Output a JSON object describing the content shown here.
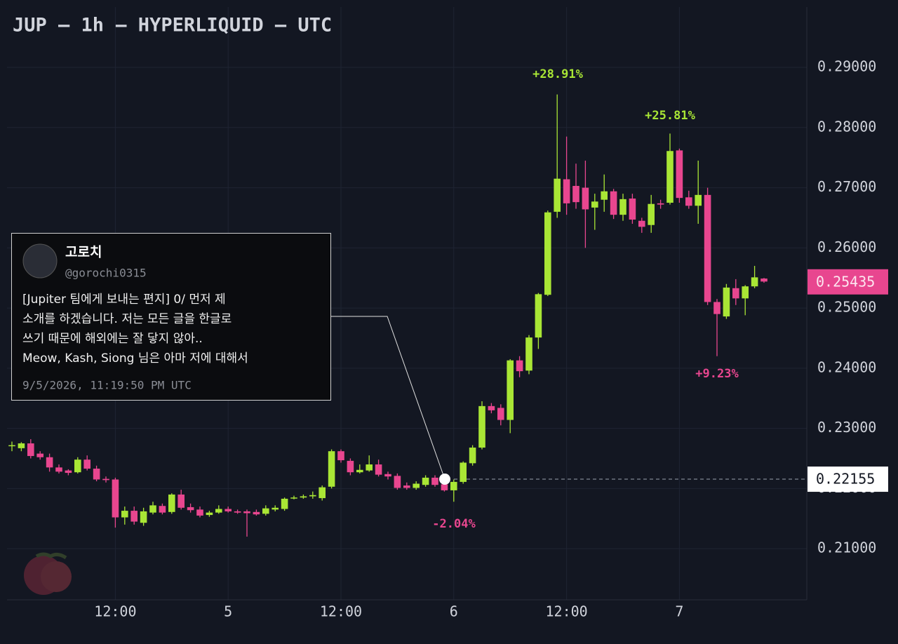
{
  "chart_data": {
    "type": "candlestick",
    "title": "JUP — 1h — HYPERLIQUID — UTC",
    "categories": [
      null,
      null,
      null,
      null,
      null,
      null,
      null,
      null,
      null,
      null,
      null,
      "12:00",
      null,
      null,
      null,
      null,
      null,
      null,
      null,
      null,
      null,
      null,
      null,
      "5",
      null,
      null,
      null,
      null,
      null,
      null,
      null,
      null,
      null,
      null,
      null,
      "12:00",
      null,
      null,
      null,
      null,
      null,
      null,
      null,
      null,
      null,
      null,
      null,
      "6",
      null,
      null,
      null,
      null,
      null,
      null,
      null,
      null,
      null,
      null,
      null,
      "12:00",
      null,
      null,
      null,
      null,
      null,
      null,
      null,
      null,
      null,
      null,
      null,
      "7",
      null,
      null,
      null,
      null,
      null,
      null,
      null,
      null,
      null
    ],
    "open": [
      0.2272,
      0.2267,
      0.2275,
      0.2258,
      0.2252,
      0.2235,
      0.223,
      0.2227,
      0.2248,
      0.2233,
      0.2216,
      0.2215,
      0.2152,
      0.2163,
      0.2143,
      0.216,
      0.2171,
      0.2161,
      0.219,
      0.2169,
      0.2165,
      0.2156,
      0.216,
      0.2166,
      0.2162,
      0.2162,
      0.2161,
      0.2158,
      0.2165,
      0.2166,
      0.2184,
      0.2185,
      0.2187,
      0.2184,
      0.2203,
      0.2262,
      0.2246,
      0.2227,
      0.223,
      0.224,
      0.2224,
      0.2221,
      0.2205,
      0.2201,
      0.2206,
      0.2218,
      0.2207,
      0.2197,
      0.2211,
      0.2242,
      0.2268,
      0.2337,
      0.2334,
      0.2314,
      0.2413,
      0.2396,
      0.2451,
      0.2522,
      0.266,
      0.2714,
      0.2703,
      0.27,
      0.2667,
      0.268,
      0.2694,
      0.2655,
      0.2682,
      0.2645,
      0.2638,
      0.2674,
      0.2675,
      0.2762,
      0.2684,
      0.267,
      0.2688,
      0.251,
      0.2486,
      0.2533,
      0.2516,
      0.2536,
      0.2549
    ],
    "high": [
      0.2278,
      0.2277,
      0.2282,
      0.2262,
      0.2258,
      0.224,
      0.2232,
      0.2252,
      0.2255,
      0.2238,
      0.222,
      0.2218,
      0.217,
      0.217,
      0.2168,
      0.2178,
      0.2175,
      0.2192,
      0.2198,
      0.2175,
      0.217,
      0.2163,
      0.2172,
      0.217,
      0.2165,
      0.2165,
      0.2165,
      0.2172,
      0.2172,
      0.2185,
      0.2188,
      0.219,
      0.2195,
      0.2205,
      0.2265,
      0.2265,
      0.225,
      0.224,
      0.2255,
      0.2248,
      0.2228,
      0.2225,
      0.221,
      0.2212,
      0.2222,
      0.2222,
      0.2215,
      0.2215,
      0.2245,
      0.2272,
      0.2345,
      0.2342,
      0.234,
      0.2415,
      0.242,
      0.2455,
      0.2525,
      0.2662,
      0.2855,
      0.2785,
      0.274,
      0.2745,
      0.269,
      0.2722,
      0.2698,
      0.269,
      0.269,
      0.265,
      0.2688,
      0.268,
      0.279,
      0.2765,
      0.2695,
      0.2745,
      0.27,
      0.2515,
      0.254,
      0.2548,
      0.2538,
      0.257,
      0.255
    ],
    "low": [
      0.2262,
      0.2262,
      0.225,
      0.2248,
      0.2228,
      0.2225,
      0.2222,
      0.2225,
      0.223,
      0.2212,
      0.221,
      0.2135,
      0.214,
      0.214,
      0.2138,
      0.2157,
      0.2157,
      0.2158,
      0.2165,
      0.216,
      0.2152,
      0.2153,
      0.2158,
      0.216,
      0.2158,
      0.212,
      0.2155,
      0.2155,
      0.2162,
      0.2163,
      0.2182,
      0.2183,
      0.2183,
      0.218,
      0.22,
      0.2243,
      0.2222,
      0.2225,
      0.2228,
      0.222,
      0.2215,
      0.2198,
      0.2198,
      0.2198,
      0.2203,
      0.2203,
      0.2195,
      0.2178,
      0.2208,
      0.2238,
      0.2265,
      0.2325,
      0.2305,
      0.2292,
      0.2385,
      0.239,
      0.2432,
      0.252,
      0.265,
      0.2655,
      0.2665,
      0.26,
      0.263,
      0.266,
      0.2648,
      0.2645,
      0.264,
      0.2625,
      0.2625,
      0.2665,
      0.2672,
      0.2675,
      0.2665,
      0.264,
      0.2505,
      0.242,
      0.2482,
      0.2505,
      0.2488,
      0.2533,
      0.2542
    ],
    "close": [
      0.2272,
      0.2275,
      0.2254,
      0.2252,
      0.2235,
      0.2228,
      0.2226,
      0.2248,
      0.2233,
      0.2215,
      0.2214,
      0.2152,
      0.2163,
      0.2145,
      0.2162,
      0.2172,
      0.216,
      0.219,
      0.2168,
      0.2164,
      0.2155,
      0.216,
      0.2166,
      0.2162,
      0.216,
      0.2159,
      0.2157,
      0.2167,
      0.2168,
      0.2183,
      0.2185,
      0.2187,
      0.2189,
      0.2202,
      0.2262,
      0.2247,
      0.2227,
      0.2231,
      0.224,
      0.2223,
      0.222,
      0.2201,
      0.2201,
      0.2208,
      0.2218,
      0.2206,
      0.2197,
      0.2211,
      0.2243,
      0.2268,
      0.2337,
      0.233,
      0.2314,
      0.2413,
      0.2395,
      0.2451,
      0.2523,
      0.2659,
      0.2715,
      0.2674,
      0.2676,
      0.2664,
      0.2677,
      0.2694,
      0.2655,
      0.2681,
      0.2647,
      0.2635,
      0.2673,
      0.2672,
      0.2761,
      0.2683,
      0.267,
      0.2688,
      0.251,
      0.249,
      0.2534,
      0.2516,
      0.2536,
      0.2551,
      0.2544
    ],
    "up_color": "#a9e635",
    "down_color": "#e8468f",
    "ylim": [
      0.2015,
      0.3012
    ],
    "yticks": [
      {
        "value": 0.21,
        "label": "0.21000"
      },
      {
        "value": 0.22,
        "label": "0.22000"
      },
      {
        "value": 0.23,
        "label": "0.23000"
      },
      {
        "value": 0.24,
        "label": "0.24000"
      },
      {
        "value": 0.25,
        "label": "0.25000"
      },
      {
        "value": 0.26,
        "label": "0.26000"
      },
      {
        "value": 0.27,
        "label": "0.27000"
      },
      {
        "value": 0.28,
        "label": "0.28000"
      },
      {
        "value": 0.29,
        "label": "0.29000"
      }
    ],
    "grid": true,
    "price_line": 0.22155,
    "last_price": 0.25435,
    "annotations": [
      {
        "text": "+28.91%",
        "color": "#a9e635"
      },
      {
        "text": "+25.81%",
        "color": "#a9e635"
      },
      {
        "text": "+9.23%",
        "color": "#e8468f"
      },
      {
        "text": "-2.04%",
        "color": "#e8468f"
      }
    ]
  },
  "post": {
    "name": "고로치",
    "handle": "@gorochi0315",
    "lines": [
      "[Jupiter 팀에게 보내는 편지] 0/ 먼저 제",
      "소개를 하겠습니다. 저는 모든 글을 한글로",
      "쓰기 때문에 해외에는 잘 닿지 않아..",
      "Meow, Kash, Siong 님은 아마 저에 대해서"
    ],
    "timestamp": "9/5/2026, 11:19:50 PM UTC"
  }
}
